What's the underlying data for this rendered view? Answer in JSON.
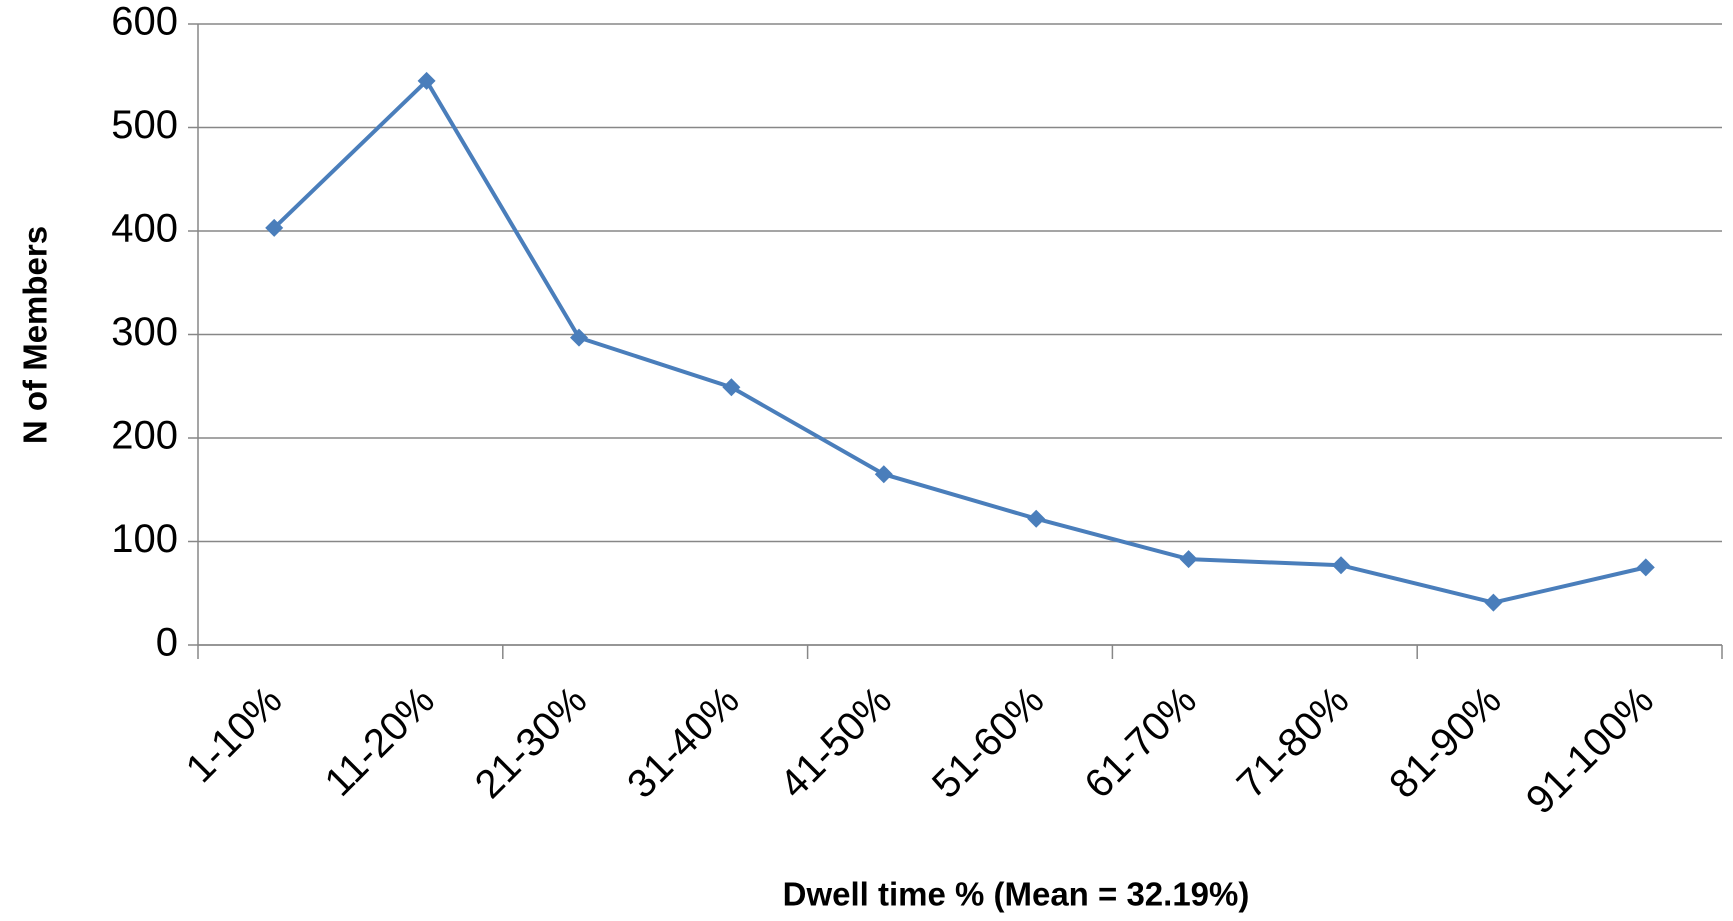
{
  "chart_data": {
    "type": "line",
    "x_label": "Dwell time % (Mean = 32.19%)",
    "y_label": "N of Members",
    "categories": [
      "1-10%",
      "11-20%",
      "21-30%",
      "31-40%",
      "41-50%",
      "51-60%",
      "61-70%",
      "71-80%",
      "81-90%",
      "91-100%"
    ],
    "series": [
      {
        "name": "N of Members",
        "color": "#4a7ebb",
        "values": [
          403,
          545,
          297,
          249,
          165,
          122,
          83,
          77,
          41,
          75
        ]
      }
    ],
    "ylim": [
      0,
      600
    ],
    "yticks": [
      0,
      100,
      200,
      300,
      400,
      500,
      600
    ],
    "grid": true
  }
}
